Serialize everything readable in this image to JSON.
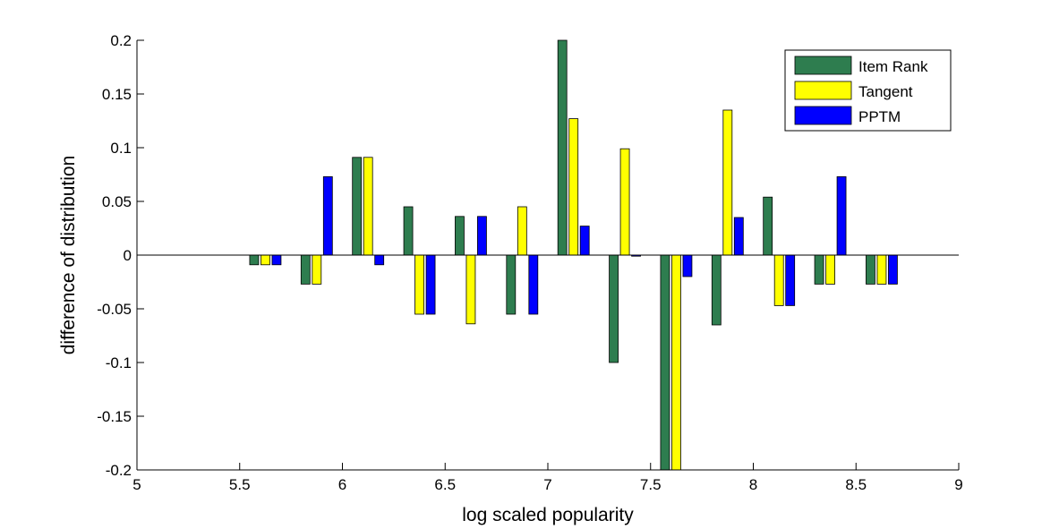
{
  "chart_data": {
    "type": "bar",
    "xlabel": "log scaled popularity",
    "ylabel": "difference of distribution",
    "xlim": [
      5,
      9
    ],
    "ylim": [
      -0.2,
      0.2
    ],
    "x_ticks": [
      5,
      5.5,
      6,
      6.5,
      7,
      7.5,
      8,
      8.5,
      9
    ],
    "x_tick_labels": [
      "5",
      "5.5",
      "6",
      "6.5",
      "7",
      "7.5",
      "8",
      "8.5",
      "9"
    ],
    "y_ticks": [
      0.2,
      0.15,
      0.1,
      0.05,
      0,
      -0.05,
      -0.1,
      -0.15,
      -0.2
    ],
    "y_tick_labels": [
      "0.2",
      "0.15",
      "0.1",
      "0.05",
      "0",
      "-0.05",
      "-0.1",
      "-0.15",
      "-0.2"
    ],
    "x": [
      5.625,
      5.875,
      6.125,
      6.375,
      6.625,
      6.875,
      7.125,
      7.375,
      7.625,
      7.875,
      8.125,
      8.375,
      8.625
    ],
    "legend_position": "top-right",
    "series": [
      {
        "name": "Item Rank",
        "color": "#2e7d4f",
        "values": [
          -0.009,
          -0.027,
          0.091,
          0.045,
          0.036,
          -0.055,
          0.2,
          -0.1,
          -0.2,
          -0.065,
          0.054,
          -0.027,
          -0.027
        ]
      },
      {
        "name": "Tangent",
        "color": "#ffff00",
        "values": [
          -0.009,
          -0.027,
          0.091,
          -0.055,
          -0.064,
          0.045,
          0.127,
          0.099,
          -0.2,
          0.135,
          -0.047,
          -0.027,
          -0.027
        ]
      },
      {
        "name": "PPTM",
        "color": "#0000ff",
        "values": [
          -0.009,
          0.073,
          -0.009,
          -0.055,
          0.036,
          -0.055,
          0.027,
          -0.001,
          -0.02,
          0.035,
          -0.047,
          0.073,
          -0.027
        ]
      }
    ]
  }
}
